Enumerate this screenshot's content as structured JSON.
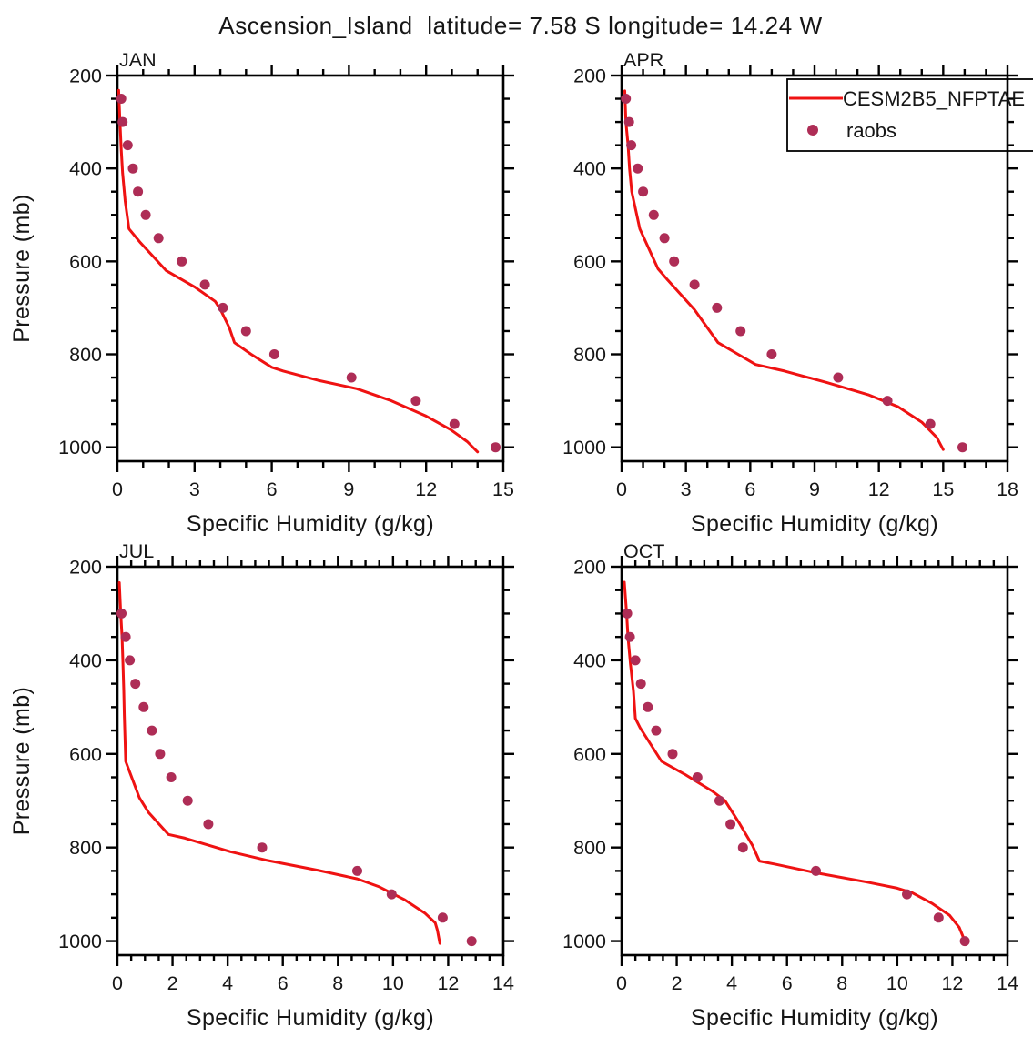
{
  "title": "Ascension_Island  latitude= 7.58 S longitude= 14.24 W",
  "colors": {
    "model_line": "#ef1212",
    "obs_marker": "#ae2d56",
    "axis": "#000000",
    "text": "#161616"
  },
  "legend": {
    "entries": [
      {
        "label": "CESM2B5_NFPTAE",
        "marker": "line"
      },
      {
        "label": "raobs",
        "marker": "dot"
      }
    ]
  },
  "chart_data": [
    {
      "type": "line",
      "title": "JAN",
      "xlabel": "Specific Humidity (g/kg)",
      "ylabel": "Pressure (mb)",
      "xlim": [
        0,
        15
      ],
      "xticks": [
        0,
        3,
        6,
        9,
        12,
        15
      ],
      "x_minor_step": 1,
      "ylim": [
        200,
        1030
      ],
      "yticks": [
        200,
        400,
        600,
        800,
        1000
      ],
      "y_minor_step": 50,
      "y_axis_direction": "increasing-downward",
      "series": [
        {
          "name": "CESM2B5_NFPTAE",
          "style": "line",
          "points": [
            [
              0.05,
              232
            ],
            [
              0.1,
              300
            ],
            [
              0.15,
              360
            ],
            [
              0.2,
              410
            ],
            [
              0.3,
              470
            ],
            [
              0.45,
              530
            ],
            [
              0.9,
              560
            ],
            [
              1.9,
              620
            ],
            [
              3.0,
              655
            ],
            [
              3.8,
              686
            ],
            [
              4.0,
              703
            ],
            [
              4.35,
              743
            ],
            [
              4.55,
              775
            ],
            [
              5.2,
              800
            ],
            [
              6.0,
              828
            ],
            [
              6.45,
              836
            ],
            [
              7.8,
              856
            ],
            [
              9.3,
              874
            ],
            [
              10.65,
              900
            ],
            [
              12.0,
              933
            ],
            [
              12.95,
              962
            ],
            [
              13.6,
              988
            ],
            [
              14.0,
              1010
            ]
          ]
        },
        {
          "name": "raobs",
          "style": "scatter",
          "points": [
            [
              0.15,
              250
            ],
            [
              0.2,
              300
            ],
            [
              0.4,
              350
            ],
            [
              0.6,
              400
            ],
            [
              0.8,
              450
            ],
            [
              1.1,
              500
            ],
            [
              1.6,
              550
            ],
            [
              2.5,
              600
            ],
            [
              3.4,
              650
            ],
            [
              4.1,
              700
            ],
            [
              5.0,
              750
            ],
            [
              6.1,
              800
            ],
            [
              9.1,
              850
            ],
            [
              11.6,
              900
            ],
            [
              13.1,
              950
            ],
            [
              14.7,
              1000
            ]
          ]
        }
      ]
    },
    {
      "type": "line",
      "title": "APR",
      "xlabel": "Specific Humidity (g/kg)",
      "ylabel": "Pressure (mb)",
      "xlim": [
        0,
        18
      ],
      "xticks": [
        0,
        3,
        6,
        9,
        12,
        15,
        18
      ],
      "x_minor_step": 1,
      "ylim": [
        200,
        1030
      ],
      "yticks": [
        200,
        400,
        600,
        800,
        1000
      ],
      "y_minor_step": 50,
      "y_axis_direction": "increasing-downward",
      "series": [
        {
          "name": "CESM2B5_NFPTAE",
          "style": "line",
          "points": [
            [
              0.15,
              233
            ],
            [
              0.2,
              300
            ],
            [
              0.3,
              350
            ],
            [
              0.37,
              400
            ],
            [
              0.47,
              450
            ],
            [
              0.85,
              530
            ],
            [
              1.7,
              616
            ],
            [
              2.15,
              640
            ],
            [
              3.4,
              704
            ],
            [
              3.6,
              717
            ],
            [
              4.5,
              775
            ],
            [
              5.25,
              795
            ],
            [
              6.25,
              822
            ],
            [
              7.6,
              836
            ],
            [
              9.6,
              861
            ],
            [
              11.5,
              887
            ],
            [
              12.9,
              913
            ],
            [
              14.0,
              946
            ],
            [
              14.7,
              979
            ],
            [
              15.0,
              1005
            ]
          ]
        },
        {
          "name": "raobs",
          "style": "scatter",
          "points": [
            [
              0.2,
              250
            ],
            [
              0.35,
              300
            ],
            [
              0.45,
              350
            ],
            [
              0.75,
              400
            ],
            [
              1.0,
              450
            ],
            [
              1.5,
              500
            ],
            [
              2.0,
              550
            ],
            [
              2.45,
              600
            ],
            [
              3.4,
              650
            ],
            [
              4.45,
              700
            ],
            [
              5.55,
              750
            ],
            [
              7.0,
              800
            ],
            [
              10.1,
              850
            ],
            [
              12.4,
              900
            ],
            [
              14.4,
              950
            ],
            [
              15.9,
              1000
            ]
          ]
        }
      ]
    },
    {
      "type": "line",
      "title": "JUL",
      "xlabel": "Specific Humidity (g/kg)",
      "ylabel": "Pressure (mb)",
      "xlim": [
        0,
        14
      ],
      "xticks": [
        0,
        2,
        4,
        6,
        8,
        10,
        12,
        14
      ],
      "x_minor_step": 0.5,
      "ylim": [
        200,
        1030
      ],
      "yticks": [
        200,
        400,
        600,
        800,
        1000
      ],
      "y_minor_step": 50,
      "y_axis_direction": "increasing-downward",
      "series": [
        {
          "name": "CESM2B5_NFPTAE",
          "style": "line",
          "points": [
            [
              0.07,
              234
            ],
            [
              0.12,
              298
            ],
            [
              0.17,
              350
            ],
            [
              0.2,
              408
            ],
            [
              0.23,
              466
            ],
            [
              0.25,
              518
            ],
            [
              0.3,
              616
            ],
            [
              0.8,
              694
            ],
            [
              1.13,
              725
            ],
            [
              1.85,
              772
            ],
            [
              2.45,
              780
            ],
            [
              4.1,
              809
            ],
            [
              5.4,
              827
            ],
            [
              7.3,
              849
            ],
            [
              8.7,
              867
            ],
            [
              9.5,
              884
            ],
            [
              10.4,
              911
            ],
            [
              11.15,
              940
            ],
            [
              11.53,
              961
            ],
            [
              11.61,
              977
            ],
            [
              11.7,
              1005
            ]
          ]
        },
        {
          "name": "raobs",
          "style": "scatter",
          "points": [
            [
              0.15,
              300
            ],
            [
              0.3,
              350
            ],
            [
              0.45,
              400
            ],
            [
              0.65,
              450
            ],
            [
              0.95,
              500
            ],
            [
              1.25,
              550
            ],
            [
              1.55,
              600
            ],
            [
              1.95,
              650
            ],
            [
              2.55,
              700
            ],
            [
              3.3,
              750
            ],
            [
              5.25,
              800
            ],
            [
              8.7,
              850
            ],
            [
              9.95,
              900
            ],
            [
              11.8,
              950
            ],
            [
              12.85,
              1000
            ]
          ]
        }
      ]
    },
    {
      "type": "line",
      "title": "OCT",
      "xlabel": "Specific Humidity (g/kg)",
      "ylabel": "Pressure (mb)",
      "xlim": [
        0,
        14
      ],
      "xticks": [
        0,
        2,
        4,
        6,
        8,
        10,
        12,
        14
      ],
      "x_minor_step": 0.5,
      "ylim": [
        200,
        1030
      ],
      "yticks": [
        200,
        400,
        600,
        800,
        1000
      ],
      "y_minor_step": 50,
      "y_axis_direction": "increasing-downward",
      "series": [
        {
          "name": "CESM2B5_NFPTAE",
          "style": "line",
          "points": [
            [
              0.1,
              233
            ],
            [
              0.18,
              300
            ],
            [
              0.23,
              350
            ],
            [
              0.32,
              408
            ],
            [
              0.43,
              466
            ],
            [
              0.5,
              524
            ],
            [
              0.67,
              544
            ],
            [
              1.45,
              616
            ],
            [
              2.3,
              644
            ],
            [
              3.3,
              680
            ],
            [
              3.75,
              700
            ],
            [
              4.25,
              746
            ],
            [
              4.75,
              796
            ],
            [
              5.0,
              829
            ],
            [
              5.6,
              836
            ],
            [
              7.05,
              854
            ],
            [
              8.9,
              874
            ],
            [
              10.0,
              887
            ],
            [
              10.55,
              897
            ],
            [
              11.25,
              919
            ],
            [
              11.9,
              945
            ],
            [
              12.25,
              971
            ],
            [
              12.45,
              1000
            ]
          ]
        },
        {
          "name": "raobs",
          "style": "scatter",
          "points": [
            [
              0.2,
              300
            ],
            [
              0.3,
              350
            ],
            [
              0.5,
              400
            ],
            [
              0.7,
              450
            ],
            [
              0.95,
              500
            ],
            [
              1.25,
              550
            ],
            [
              1.85,
              600
            ],
            [
              2.75,
              650
            ],
            [
              3.55,
              700
            ],
            [
              3.95,
              750
            ],
            [
              4.4,
              800
            ],
            [
              7.05,
              850
            ],
            [
              10.35,
              900
            ],
            [
              11.5,
              950
            ],
            [
              12.45,
              1000
            ]
          ]
        }
      ]
    }
  ]
}
